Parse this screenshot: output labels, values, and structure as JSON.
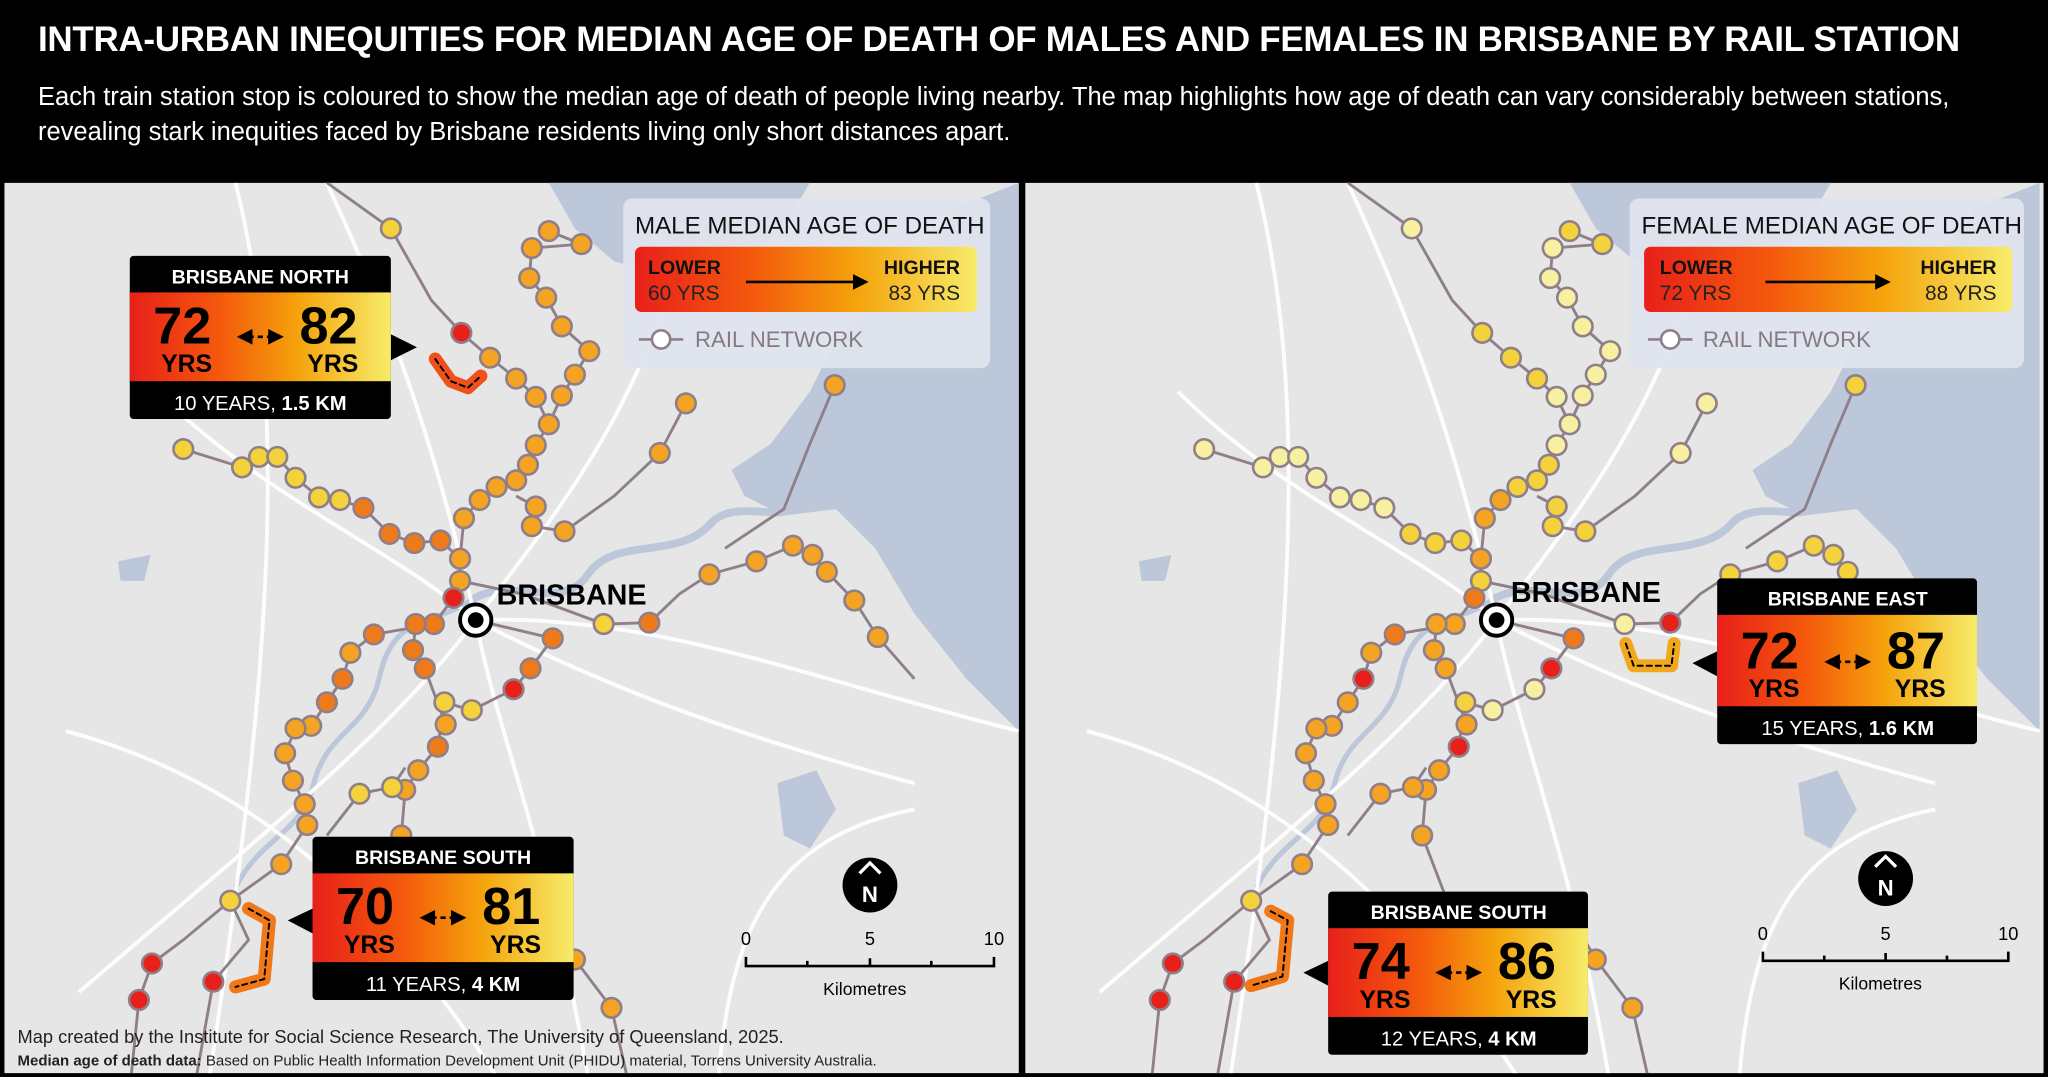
{
  "header": {
    "title": "INTRA-URBAN INEQUITIES FOR MEDIAN AGE OF DEATH OF MALES AND FEMALES IN BRISBANE BY RAIL STATION",
    "subtitle": "Each train station stop is coloured to show the median age of death of people living nearby. The map highlights how age of death can vary considerably between stations, revealing stark inequities faced by Brisbane residents living only short distances apart."
  },
  "colors": {
    "lowest": "#e8201a",
    "low": "#ef7a1a",
    "mid": "#f4a323",
    "high": "#f3d23c",
    "highest": "#f7f0a0",
    "land": "#e6e6e6",
    "water": "#bcc8da",
    "rail": "#8f7f8a"
  },
  "panels": [
    {
      "legend": {
        "title": "MALE MEDIAN AGE OF DEATH",
        "lower_label": "LOWER",
        "lower_value": "60 YRS",
        "higher_label": "HIGHER",
        "higher_value": "83 YRS",
        "rail_label": "RAIL NETWORK"
      },
      "city_label": "BRISBANE",
      "north_label": "N",
      "scale": {
        "ticks": [
          "0",
          "5",
          "10"
        ],
        "unit": "Kilometres"
      },
      "callouts": [
        {
          "title": "BRISBANE NORTH",
          "low": "72",
          "high": "82",
          "unit": "YRS",
          "gap_years": "10 YEARS, ",
          "distance": "1.5 KM"
        },
        {
          "title": "BRISBANE SOUTH",
          "low": "70",
          "high": "81",
          "unit": "YRS",
          "gap_years": "11 YEARS, ",
          "distance": "4 KM"
        }
      ]
    },
    {
      "legend": {
        "title": "FEMALE MEDIAN AGE OF DEATH",
        "lower_label": "LOWER",
        "lower_value": "72 YRS",
        "higher_label": "HIGHER",
        "higher_value": "88 YRS",
        "rail_label": "RAIL NETWORK"
      },
      "city_label": "BRISBANE",
      "north_label": "N",
      "scale": {
        "ticks": [
          "0",
          "5",
          "10"
        ],
        "unit": "Kilometres"
      },
      "callouts": [
        {
          "title": "BRISBANE EAST",
          "low": "72",
          "high": "87",
          "unit": "YRS",
          "gap_years": "15 YEARS, ",
          "distance": "1.6 KM"
        },
        {
          "title": "BRISBANE SOUTH",
          "low": "74",
          "high": "86",
          "unit": "YRS",
          "gap_years": "12 YEARS, ",
          "distance": "4 KM"
        }
      ]
    }
  ],
  "footer": {
    "credit": "Map created by the Institute for Social Science Research, The University of Queensland, 2025.",
    "source_label": "Median age of death data:",
    "source_text": " Based on Public Health Information Development Unit (PHIDU) material, Torrens University Australia."
  }
}
